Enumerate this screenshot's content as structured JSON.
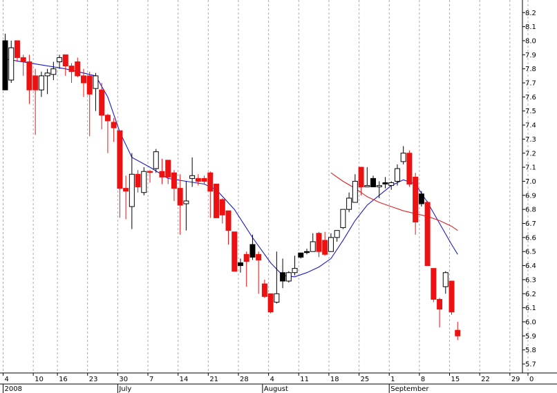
{
  "chart_data": {
    "type": "candlestick",
    "grid": true,
    "yaxis_side": "right",
    "ylim": [
      5.65,
      8.3
    ],
    "y_ticks": [
      "5.7",
      "5.8",
      "5.9",
      "6.0",
      "6.1",
      "6.2",
      "6.3",
      "6.4",
      "6.5",
      "6.6",
      "6.7",
      "6.8",
      "6.9",
      "7.0",
      "7.1",
      "7.2",
      "7.3",
      "7.4",
      "7.5",
      "7.6",
      "7.7",
      "7.8",
      "7.9",
      "8.0",
      "8.1",
      "8.2"
    ],
    "x_ticks": [
      {
        "i": 0,
        "label": "4"
      },
      {
        "i": 5,
        "label": "10"
      },
      {
        "i": 9,
        "label": "16"
      },
      {
        "i": 14,
        "label": "23"
      },
      {
        "i": 19,
        "label": "30"
      },
      {
        "i": 24,
        "label": "7"
      },
      {
        "i": 29,
        "label": "14"
      },
      {
        "i": 34,
        "label": "21"
      },
      {
        "i": 39,
        "label": "28"
      },
      {
        "i": 44,
        "label": "4"
      },
      {
        "i": 49,
        "label": "11"
      },
      {
        "i": 54,
        "label": "18"
      },
      {
        "i": 59,
        "label": "25"
      },
      {
        "i": 64,
        "label": "1"
      },
      {
        "i": 69,
        "label": "8"
      },
      {
        "i": 74,
        "label": "15"
      },
      {
        "i": 79,
        "label": "22"
      },
      {
        "i": 84,
        "label": "29"
      },
      {
        "i": 87,
        "label": "0"
      }
    ],
    "month_labels": [
      {
        "i": 0,
        "label": "2008"
      },
      {
        "i": 19,
        "label": "July"
      },
      {
        "i": 43,
        "label": "August"
      },
      {
        "i": 64,
        "label": "September"
      }
    ],
    "colors": {
      "up": "#ffffff",
      "down": "#ee1111",
      "down_dark": "#000000",
      "outline": "#000000",
      "ma_short": "#1a1acc",
      "ma_long": "#dd2222",
      "grid": "#aaaaaa"
    },
    "candles": [
      {
        "i": 0,
        "o": 7.65,
        "h": 8.05,
        "l": 7.65,
        "c": 8.0,
        "color": "down_dark"
      },
      {
        "i": 1,
        "o": 7.72,
        "h": 8.0,
        "l": 7.7,
        "c": 7.95,
        "color": "up"
      },
      {
        "i": 2,
        "o": 8.0,
        "h": 8.0,
        "l": 7.85,
        "c": 7.88,
        "color": "down"
      },
      {
        "i": 3,
        "o": 7.88,
        "h": 7.9,
        "l": 7.75,
        "c": 7.85,
        "color": "down"
      },
      {
        "i": 4,
        "o": 7.85,
        "h": 7.9,
        "l": 7.55,
        "c": 7.65,
        "color": "down"
      },
      {
        "i": 5,
        "o": 7.75,
        "h": 7.8,
        "l": 7.33,
        "c": 7.65,
        "color": "down"
      },
      {
        "i": 6,
        "o": 7.65,
        "h": 7.78,
        "l": 7.6,
        "c": 7.75,
        "color": "up"
      },
      {
        "i": 7,
        "o": 7.75,
        "h": 7.8,
        "l": 7.62,
        "c": 7.77,
        "color": "up"
      },
      {
        "i": 8,
        "o": 7.76,
        "h": 7.85,
        "l": 7.72,
        "c": 7.8,
        "color": "up"
      },
      {
        "i": 9,
        "o": 7.85,
        "h": 7.9,
        "l": 7.8,
        "c": 7.88,
        "color": "up"
      },
      {
        "i": 10,
        "o": 7.9,
        "h": 7.9,
        "l": 7.75,
        "c": 7.82,
        "color": "down"
      },
      {
        "i": 11,
        "o": 7.82,
        "h": 7.84,
        "l": 7.7,
        "c": 7.78,
        "color": "down"
      },
      {
        "i": 12,
        "o": 7.85,
        "h": 7.88,
        "l": 7.74,
        "c": 7.75,
        "color": "down"
      },
      {
        "i": 13,
        "o": 7.75,
        "h": 7.8,
        "l": 7.6,
        "c": 7.7,
        "color": "down"
      },
      {
        "i": 14,
        "o": 7.75,
        "h": 7.78,
        "l": 7.32,
        "c": 7.62,
        "color": "down"
      },
      {
        "i": 15,
        "o": 7.66,
        "h": 7.77,
        "l": 7.5,
        "c": 7.75,
        "color": "up"
      },
      {
        "i": 16,
        "o": 7.65,
        "h": 7.7,
        "l": 7.37,
        "c": 7.47,
        "color": "down"
      },
      {
        "i": 17,
        "o": 7.47,
        "h": 7.48,
        "l": 7.2,
        "c": 7.43,
        "color": "down"
      },
      {
        "i": 18,
        "o": 7.42,
        "h": 7.45,
        "l": 7.28,
        "c": 7.38,
        "color": "down"
      },
      {
        "i": 19,
        "o": 7.36,
        "h": 7.36,
        "l": 6.74,
        "c": 6.95,
        "color": "down"
      },
      {
        "i": 20,
        "o": 6.95,
        "h": 7.04,
        "l": 6.73,
        "c": 6.93,
        "color": "down"
      },
      {
        "i": 21,
        "o": 6.82,
        "h": 7.2,
        "l": 6.66,
        "c": 7.05,
        "color": "up"
      },
      {
        "i": 22,
        "o": 7.05,
        "h": 7.08,
        "l": 6.92,
        "c": 6.96,
        "color": "down"
      },
      {
        "i": 23,
        "o": 6.92,
        "h": 7.1,
        "l": 6.9,
        "c": 7.07,
        "color": "up"
      },
      {
        "i": 24,
        "o": 7.07,
        "h": 7.08,
        "l": 6.99,
        "c": 7.07,
        "color": "down"
      },
      {
        "i": 25,
        "o": 7.09,
        "h": 7.23,
        "l": 7.06,
        "c": 7.21,
        "color": "up"
      },
      {
        "i": 26,
        "o": 7.07,
        "h": 7.16,
        "l": 6.98,
        "c": 7.03,
        "color": "down"
      },
      {
        "i": 27,
        "o": 7.15,
        "h": 7.15,
        "l": 6.98,
        "c": 7.03,
        "color": "down"
      },
      {
        "i": 28,
        "o": 7.06,
        "h": 7.08,
        "l": 6.86,
        "c": 6.95,
        "color": "down"
      },
      {
        "i": 29,
        "o": 6.95,
        "h": 7.05,
        "l": 6.62,
        "c": 6.83,
        "color": "down"
      },
      {
        "i": 30,
        "o": 6.84,
        "h": 7.0,
        "l": 6.65,
        "c": 6.86,
        "color": "up"
      },
      {
        "i": 31,
        "o": 7.02,
        "h": 7.17,
        "l": 6.96,
        "c": 7.04,
        "color": "up"
      },
      {
        "i": 32,
        "o": 7.02,
        "h": 7.05,
        "l": 6.97,
        "c": 7.0,
        "color": "down"
      },
      {
        "i": 33,
        "o": 7.02,
        "h": 7.04,
        "l": 6.98,
        "c": 7.0,
        "color": "down"
      },
      {
        "i": 34,
        "o": 7.06,
        "h": 7.07,
        "l": 6.74,
        "c": 6.93,
        "color": "down"
      },
      {
        "i": 35,
        "o": 6.98,
        "h": 6.98,
        "l": 6.74,
        "c": 6.74,
        "color": "down"
      },
      {
        "i": 36,
        "o": 6.87,
        "h": 6.88,
        "l": 6.7,
        "c": 6.76,
        "color": "down"
      },
      {
        "i": 37,
        "o": 6.79,
        "h": 6.79,
        "l": 6.55,
        "c": 6.65,
        "color": "down"
      },
      {
        "i": 38,
        "o": 6.64,
        "h": 6.64,
        "l": 6.36,
        "c": 6.36,
        "color": "down"
      },
      {
        "i": 39,
        "o": 6.42,
        "h": 6.45,
        "l": 6.35,
        "c": 6.4,
        "color": "down_dark"
      },
      {
        "i": 40,
        "o": 6.48,
        "h": 6.5,
        "l": 6.25,
        "c": 6.43,
        "color": "down"
      },
      {
        "i": 41,
        "o": 6.46,
        "h": 6.62,
        "l": 6.44,
        "c": 6.55,
        "color": "down_dark"
      },
      {
        "i": 42,
        "o": 6.48,
        "h": 6.5,
        "l": 6.2,
        "c": 6.44,
        "color": "down"
      },
      {
        "i": 43,
        "o": 6.27,
        "h": 6.3,
        "l": 6.17,
        "c": 6.18,
        "color": "down"
      },
      {
        "i": 44,
        "o": 6.2,
        "h": 6.2,
        "l": 6.06,
        "c": 6.07,
        "color": "down"
      },
      {
        "i": 45,
        "o": 6.14,
        "h": 6.5,
        "l": 6.13,
        "c": 6.2,
        "color": "up"
      },
      {
        "i": 46,
        "o": 6.29,
        "h": 6.45,
        "l": 6.24,
        "c": 6.35,
        "color": "down_dark"
      },
      {
        "i": 47,
        "o": 6.29,
        "h": 6.36,
        "l": 6.28,
        "c": 6.35,
        "color": "up"
      },
      {
        "i": 48,
        "o": 6.35,
        "h": 6.47,
        "l": 6.33,
        "c": 6.38,
        "color": "up"
      },
      {
        "i": 49,
        "o": 6.46,
        "h": 6.49,
        "l": 6.45,
        "c": 6.49,
        "color": "down_dark"
      },
      {
        "i": 50,
        "o": 6.5,
        "h": 6.52,
        "l": 6.48,
        "c": 6.5,
        "color": "down_dark"
      },
      {
        "i": 51,
        "o": 6.5,
        "h": 6.63,
        "l": 6.5,
        "c": 6.57,
        "color": "up"
      },
      {
        "i": 52,
        "o": 6.63,
        "h": 6.64,
        "l": 6.46,
        "c": 6.5,
        "color": "down"
      },
      {
        "i": 53,
        "o": 6.58,
        "h": 6.64,
        "l": 6.47,
        "c": 6.48,
        "color": "down"
      },
      {
        "i": 54,
        "o": 6.5,
        "h": 6.63,
        "l": 6.5,
        "c": 6.6,
        "color": "up"
      },
      {
        "i": 55,
        "o": 6.6,
        "h": 6.64,
        "l": 6.57,
        "c": 6.65,
        "color": "up"
      },
      {
        "i": 56,
        "o": 6.67,
        "h": 6.8,
        "l": 6.66,
        "c": 6.8,
        "color": "up"
      },
      {
        "i": 57,
        "o": 6.8,
        "h": 6.92,
        "l": 6.78,
        "c": 6.88,
        "color": "up"
      },
      {
        "i": 58,
        "o": 6.85,
        "h": 7.05,
        "l": 6.85,
        "c": 7.0,
        "color": "up"
      },
      {
        "i": 59,
        "o": 7.1,
        "h": 7.1,
        "l": 6.9,
        "c": 6.96,
        "color": "down"
      },
      {
        "i": 60,
        "o": 6.96,
        "h": 7.1,
        "l": 6.96,
        "c": 6.97,
        "color": "up"
      },
      {
        "i": 61,
        "o": 7.02,
        "h": 7.04,
        "l": 6.96,
        "c": 6.96,
        "color": "down_dark"
      },
      {
        "i": 62,
        "o": 6.97,
        "h": 7.0,
        "l": 6.88,
        "c": 6.96,
        "color": "up"
      },
      {
        "i": 63,
        "o": 6.98,
        "h": 7.03,
        "l": 6.95,
        "c": 6.99,
        "color": "down_dark"
      },
      {
        "i": 64,
        "o": 6.99,
        "h": 7.0,
        "l": 6.94,
        "c": 6.97,
        "color": "up"
      },
      {
        "i": 65,
        "o": 7.0,
        "h": 7.12,
        "l": 6.97,
        "c": 7.09,
        "color": "up"
      },
      {
        "i": 66,
        "o": 7.14,
        "h": 7.25,
        "l": 7.12,
        "c": 7.2,
        "color": "up"
      },
      {
        "i": 67,
        "o": 7.2,
        "h": 7.22,
        "l": 6.96,
        "c": 6.98,
        "color": "down"
      },
      {
        "i": 68,
        "o": 7.03,
        "h": 7.06,
        "l": 6.62,
        "c": 6.71,
        "color": "down"
      },
      {
        "i": 69,
        "o": 6.91,
        "h": 6.93,
        "l": 6.82,
        "c": 6.84,
        "color": "down_dark"
      },
      {
        "i": 70,
        "o": 6.85,
        "h": 6.86,
        "l": 6.4,
        "c": 6.4,
        "color": "down"
      },
      {
        "i": 71,
        "o": 6.38,
        "h": 6.38,
        "l": 6.14,
        "c": 6.16,
        "color": "down"
      },
      {
        "i": 72,
        "o": 6.16,
        "h": 6.17,
        "l": 5.96,
        "c": 6.09,
        "color": "down"
      },
      {
        "i": 73,
        "o": 6.25,
        "h": 6.36,
        "l": 6.2,
        "c": 6.35,
        "color": "up"
      },
      {
        "i": 74,
        "o": 6.29,
        "h": 6.29,
        "l": 6.05,
        "c": 6.07,
        "color": "down"
      },
      {
        "i": 75,
        "o": 5.94,
        "h": 6.0,
        "l": 5.87,
        "c": 5.9,
        "color": "down"
      }
    ],
    "ma_short": [
      [
        0,
        7.87
      ],
      [
        10,
        7.8
      ],
      [
        15,
        7.75
      ],
      [
        17,
        7.6
      ],
      [
        19,
        7.35
      ],
      [
        21,
        7.17
      ],
      [
        24,
        7.1
      ],
      [
        27,
        7.02
      ],
      [
        30,
        7.0
      ],
      [
        33,
        6.98
      ],
      [
        35,
        6.94
      ],
      [
        38,
        6.8
      ],
      [
        41,
        6.6
      ],
      [
        44,
        6.42
      ],
      [
        46,
        6.33
      ],
      [
        48,
        6.32
      ],
      [
        50,
        6.35
      ],
      [
        52,
        6.39
      ],
      [
        54,
        6.45
      ],
      [
        56,
        6.58
      ],
      [
        58,
        6.72
      ],
      [
        60,
        6.83
      ],
      [
        62,
        6.9
      ],
      [
        64,
        6.97
      ],
      [
        66,
        7.01
      ],
      [
        68,
        6.98
      ],
      [
        70,
        6.85
      ],
      [
        72,
        6.7
      ],
      [
        74,
        6.55
      ],
      [
        75,
        6.48
      ]
    ],
    "ma_long": [
      [
        54,
        7.06
      ],
      [
        56,
        7.0
      ],
      [
        58,
        6.95
      ],
      [
        60,
        6.89
      ],
      [
        62,
        6.85
      ],
      [
        64,
        6.82
      ],
      [
        66,
        6.79
      ],
      [
        68,
        6.77
      ],
      [
        70,
        6.75
      ],
      [
        72,
        6.72
      ],
      [
        74,
        6.68
      ],
      [
        75,
        6.65
      ]
    ]
  }
}
